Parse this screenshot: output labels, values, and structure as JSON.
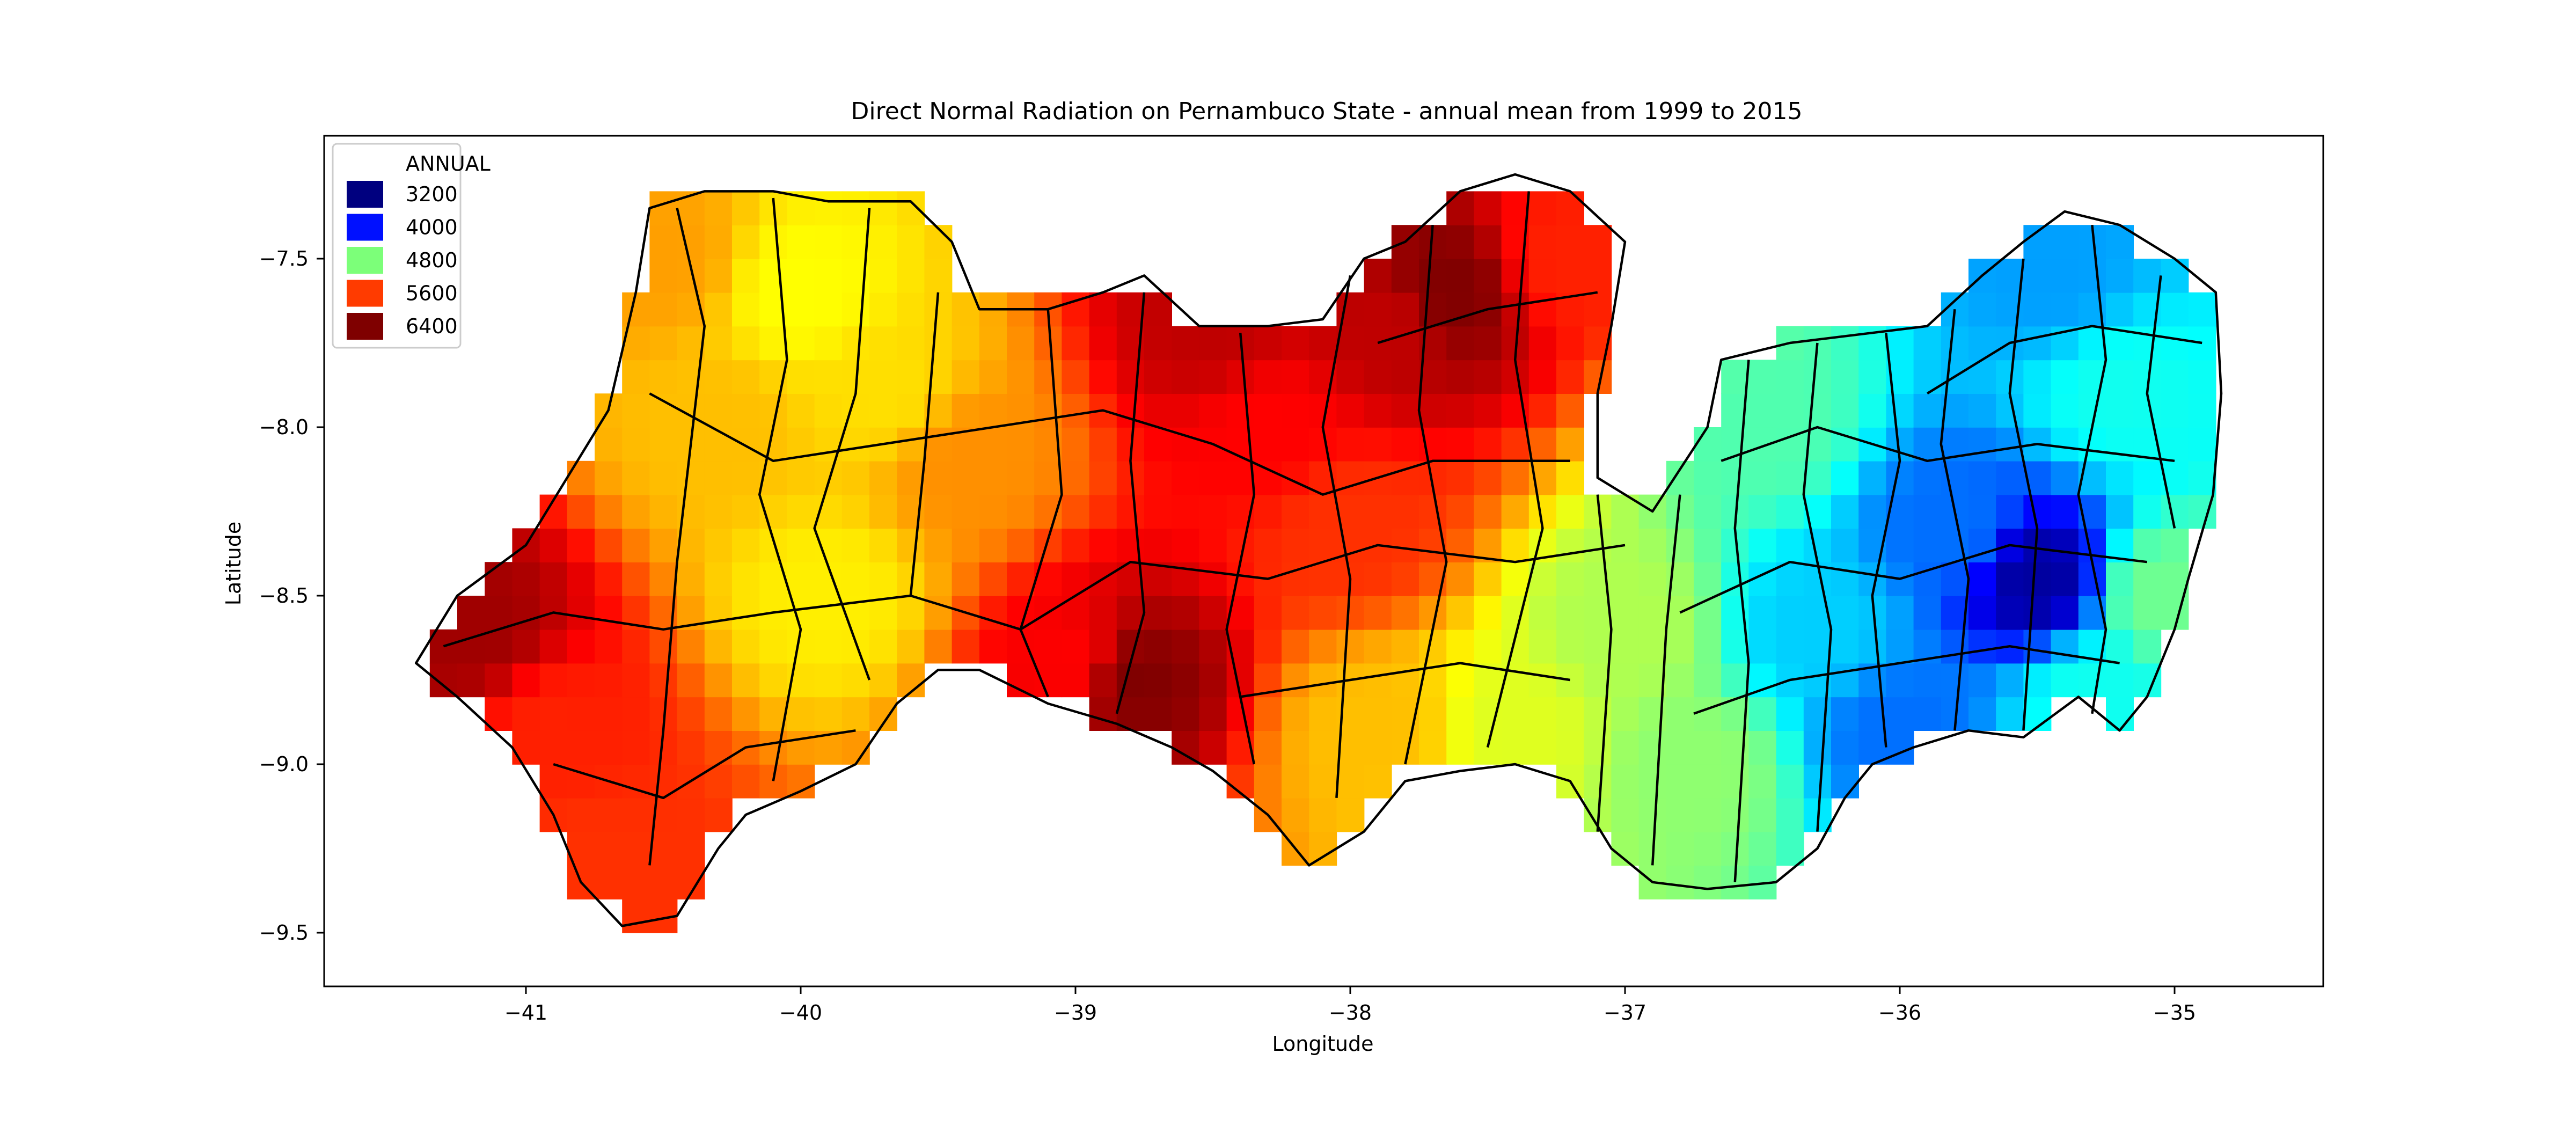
{
  "title": "Direct Normal Radiation on Pernambuco State - annual mean from 1999 to 2015",
  "xlabel": "Longitude",
  "ylabel": "Latitude",
  "xticks": [
    "−41",
    "−40",
    "−39",
    "−38",
    "−37",
    "−36",
    "−35"
  ],
  "yticks": [
    "−7.5",
    "−8.0",
    "−8.5",
    "−9.0",
    "−9.5"
  ],
  "legend": {
    "title": "ANNUAL",
    "entries": [
      {
        "label": "3200",
        "color": "#00007f"
      },
      {
        "label": "4000",
        "color": "#0010ff"
      },
      {
        "label": "4800",
        "color": "#7cff79"
      },
      {
        "label": "5600",
        "color": "#ff3b00"
      },
      {
        "label": "6400",
        "color": "#7f0000"
      }
    ]
  },
  "chart_data": {
    "type": "heatmap",
    "colormap": "jet",
    "xlim": [
      -41.75,
      -34.55
    ],
    "ylim": [
      -9.68,
      -7.2
    ],
    "legend_placement": "top-left",
    "grid": false,
    "zones": [
      {
        "lon": -41.2,
        "lat": -8.6,
        "value": 6300
      },
      {
        "lon": -40.9,
        "lat": -8.9,
        "value": 5900
      },
      {
        "lon": -40.75,
        "lat": -9.3,
        "value": 5850
      },
      {
        "lon": -40.5,
        "lat": -7.5,
        "value": 5500
      },
      {
        "lon": -40.3,
        "lat": -8.0,
        "value": 5400
      },
      {
        "lon": -40.0,
        "lat": -7.6,
        "value": 5200
      },
      {
        "lon": -39.9,
        "lat": -8.5,
        "value": 5250
      },
      {
        "lon": -39.7,
        "lat": -7.9,
        "value": 5300
      },
      {
        "lon": -39.4,
        "lat": -8.1,
        "value": 5550
      },
      {
        "lon": -39.0,
        "lat": -8.7,
        "value": 6000
      },
      {
        "lon": -38.8,
        "lat": -8.75,
        "value": 6400
      },
      {
        "lon": -38.5,
        "lat": -7.7,
        "value": 6200
      },
      {
        "lon": -38.3,
        "lat": -8.0,
        "value": 6000
      },
      {
        "lon": -38.0,
        "lat": -8.3,
        "value": 5850
      },
      {
        "lon": -37.85,
        "lat": -7.7,
        "value": 6200
      },
      {
        "lon": -37.65,
        "lat": -7.6,
        "value": 6400
      },
      {
        "lon": -37.2,
        "lat": -7.5,
        "value": 5900
      },
      {
        "lon": -37.9,
        "lat": -8.9,
        "value": 5400
      },
      {
        "lon": -37.4,
        "lat": -8.9,
        "value": 5100
      },
      {
        "lon": -37.0,
        "lat": -8.6,
        "value": 4950
      },
      {
        "lon": -36.75,
        "lat": -9.0,
        "value": 4850
      },
      {
        "lon": -36.5,
        "lat": -8.0,
        "value": 4650
      },
      {
        "lon": -36.3,
        "lat": -8.6,
        "value": 4250
      },
      {
        "lon": -36.0,
        "lat": -8.9,
        "value": 3950
      },
      {
        "lon": -35.8,
        "lat": -8.3,
        "value": 3950
      },
      {
        "lon": -35.5,
        "lat": -8.45,
        "value": 3300
      },
      {
        "lon": -35.45,
        "lat": -7.55,
        "value": 4100
      },
      {
        "lon": -35.2,
        "lat": -7.9,
        "value": 4450
      },
      {
        "lon": -35.05,
        "lat": -8.5,
        "value": 4750
      },
      {
        "lon": -35.3,
        "lat": -8.8,
        "value": 4450
      }
    ]
  }
}
